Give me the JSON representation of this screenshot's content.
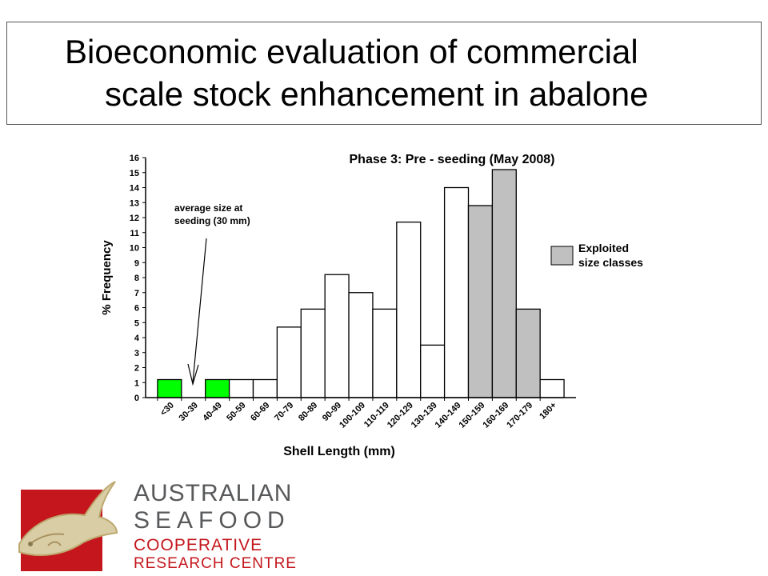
{
  "slide": {
    "title_line1": "Bioeconomic evaluation of commercial",
    "title_line2": "scale stock enhancement in abalone"
  },
  "chart_data": {
    "type": "bar",
    "title": "Phase 3: Pre - seeding (May 2008)",
    "xlabel": "Shell Length (mm)",
    "ylabel": "% Frequency",
    "ylim": [
      0,
      16
    ],
    "yticks": [
      0,
      1,
      2,
      3,
      4,
      5,
      6,
      7,
      8,
      9,
      10,
      11,
      12,
      13,
      14,
      15,
      16
    ],
    "categories": [
      "<30",
      "30-39",
      "40-49",
      "50-59",
      "60-69",
      "70-79",
      "80-89",
      "90-99",
      "100-109",
      "110-119",
      "120-129",
      "130-139",
      "140-149",
      "150-159",
      "160-169",
      "170-179",
      "180+"
    ],
    "values": [
      1.2,
      0,
      1.2,
      1.2,
      1.2,
      4.7,
      5.9,
      8.2,
      7.0,
      5.9,
      11.7,
      3.5,
      14.0,
      12.8,
      15.2,
      5.9,
      1.2
    ],
    "bar_groups": [
      "seeding",
      "seeding",
      "seeding",
      "normal",
      "normal",
      "normal",
      "normal",
      "normal",
      "normal",
      "normal",
      "normal",
      "normal",
      "normal",
      "exploited",
      "exploited",
      "exploited",
      "normal"
    ],
    "colors": {
      "seeding": "#00ff00",
      "normal": "#ffffff",
      "exploited": "#c0c0c0",
      "stroke": "#000000"
    },
    "legend": {
      "label_line1": "Exploited",
      "label_line2": "size classes",
      "placement": "right"
    },
    "annotation": {
      "line1": "average size at",
      "line2": "seeding (30 mm)",
      "points_to": "30-39"
    },
    "grid": false
  },
  "logo": {
    "line1": "AUSTRALIAN",
    "line2": "SEAFOOD",
    "line3": "COOPERATIVE",
    "line4": "RESEARCH CENTRE",
    "colors": {
      "red": "#c4161c",
      "gray": "#58595b",
      "gold": "#c8b98a"
    }
  }
}
